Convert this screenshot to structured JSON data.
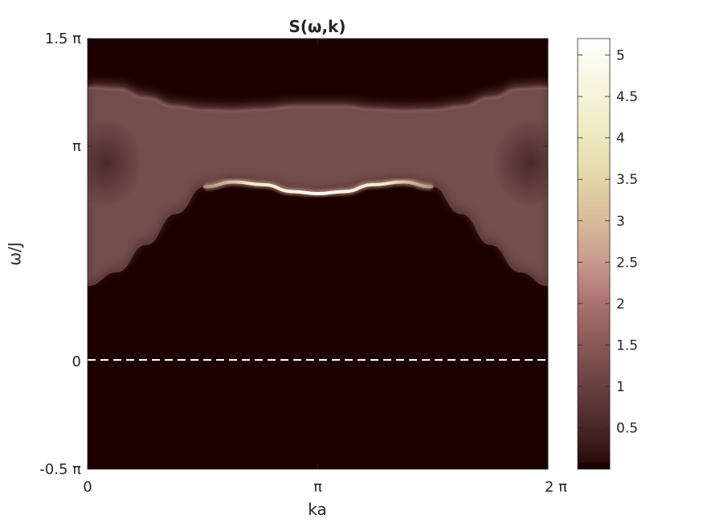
{
  "chart_data": {
    "type": "heatmap",
    "title": "S(ω,k)",
    "xlabel": "ka",
    "ylabel": "ω/J",
    "xlim": [
      0,
      6.2832
    ],
    "ylim": [
      -1.5708,
      4.7124
    ],
    "x_ticks": [
      {
        "value": 0,
        "label": "0"
      },
      {
        "value": 3.1416,
        "label": "π"
      },
      {
        "value": 6.2832,
        "label": "2 π"
      }
    ],
    "y_ticks": [
      {
        "value": -1.5708,
        "label": "-0.5 π"
      },
      {
        "value": 0,
        "label": "0"
      },
      {
        "value": 3.1416,
        "label": "π"
      },
      {
        "value": 4.7124,
        "label": "1.5 π"
      }
    ],
    "colorbar": {
      "range": [
        0,
        5.2
      ],
      "ticks": [
        "0.5",
        "1",
        "1.5",
        "2",
        "2.5",
        "3",
        "3.5",
        "4",
        "4.5",
        "5"
      ],
      "tick_values": [
        0.5,
        1,
        1.5,
        2,
        2.5,
        3,
        3.5,
        4,
        4.5,
        5
      ],
      "colormap": [
        "#1c0000",
        "#3a1a18",
        "#6b4040",
        "#a06868",
        "#c48c8c",
        "#d8b898",
        "#e8dcaa",
        "#f4f2d8",
        "#ffffff"
      ]
    },
    "features": {
      "continuum_lower_edge": {
        "description_free": true,
        "k": [
          0.0,
          0.4,
          0.8,
          1.2,
          1.6,
          2.0,
          2.4,
          2.8,
          3.1416,
          3.5,
          3.9,
          4.3,
          4.7,
          5.1,
          5.5,
          5.9,
          6.2832
        ],
        "omega": [
          1.1,
          1.3,
          1.7,
          2.15,
          2.55,
          2.62,
          2.58,
          2.48,
          2.45,
          2.48,
          2.58,
          2.62,
          2.55,
          2.15,
          1.7,
          1.3,
          1.1
        ]
      },
      "continuum_upper_edge": {
        "k": [
          0.0,
          0.4,
          0.8,
          1.2,
          1.6,
          2.0,
          2.4,
          2.8,
          3.1416,
          3.5,
          3.9,
          4.3,
          4.7,
          5.1,
          5.5,
          5.9,
          6.2832
        ],
        "omega": [
          4.0,
          3.98,
          3.85,
          3.72,
          3.67,
          3.66,
          3.68,
          3.72,
          3.72,
          3.72,
          3.68,
          3.66,
          3.67,
          3.72,
          3.85,
          3.98,
          4.0
        ]
      },
      "zero_line": {
        "omega": 0,
        "style": "dashed"
      }
    }
  }
}
